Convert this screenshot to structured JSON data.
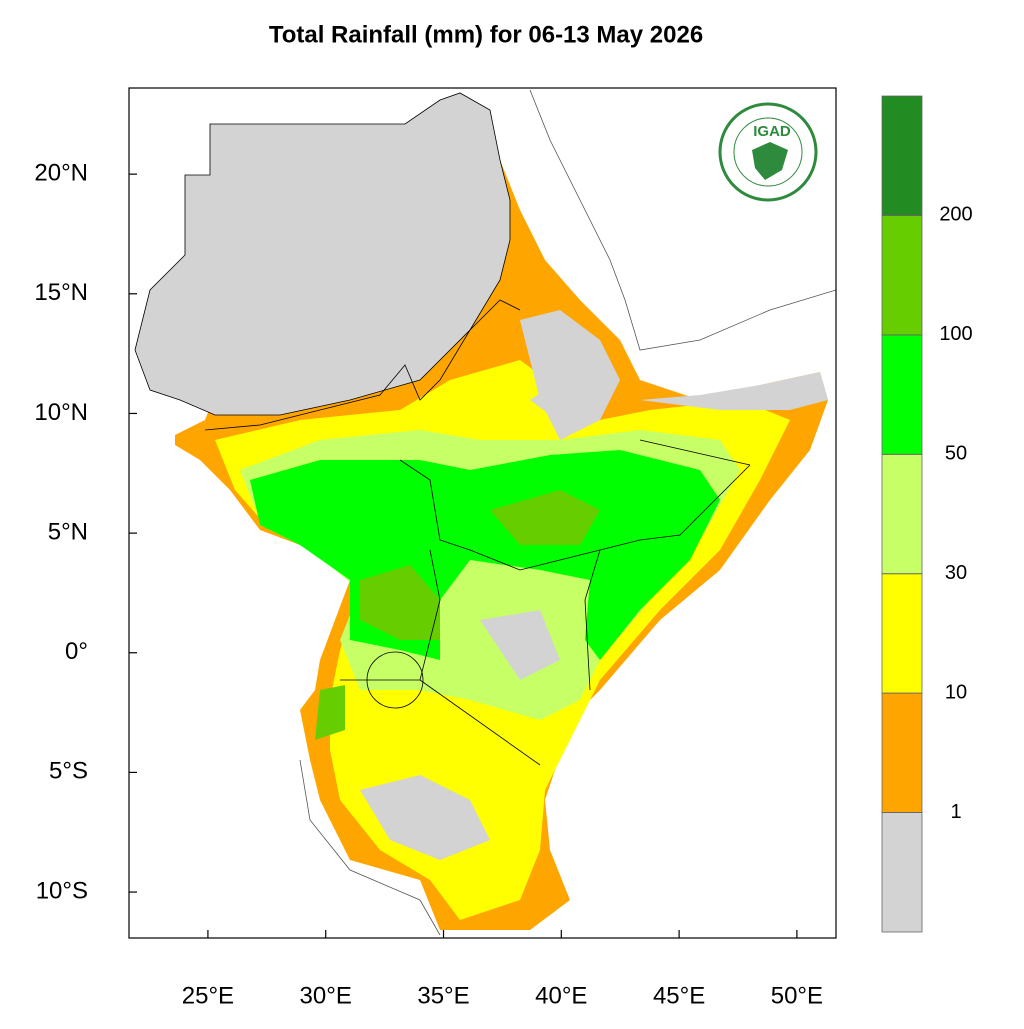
{
  "title": "Total Rainfall (mm) for 06-13 May 2026",
  "logo": {
    "text": "IGAD"
  },
  "map": {
    "xlim": [
      21.65,
      51.66
    ],
    "ylim": [
      -11.92,
      23.6
    ],
    "xticks": [
      {
        "value": 25,
        "label": "25°E"
      },
      {
        "value": 30,
        "label": "30°E"
      },
      {
        "value": 35,
        "label": "35°E"
      },
      {
        "value": 40,
        "label": "40°E"
      },
      {
        "value": 45,
        "label": "45°E"
      },
      {
        "value": 50,
        "label": "50°E"
      }
    ],
    "yticks": [
      {
        "value": 20,
        "label": "20°N"
      },
      {
        "value": 15,
        "label": "15°N"
      },
      {
        "value": 10,
        "label": "10°N"
      },
      {
        "value": 5,
        "label": "5°N"
      },
      {
        "value": 0,
        "label": "0°"
      },
      {
        "value": -5,
        "label": "5°S"
      },
      {
        "value": -10,
        "label": "10°S"
      }
    ]
  },
  "colorbar": {
    "levels": [
      1,
      10,
      30,
      50,
      100,
      200
    ],
    "colors": [
      "#d3d3d3",
      "#ffa500",
      "#ffff00",
      "#c6ff66",
      "#00ff00",
      "#66cd00",
      "#228b22"
    ]
  }
}
